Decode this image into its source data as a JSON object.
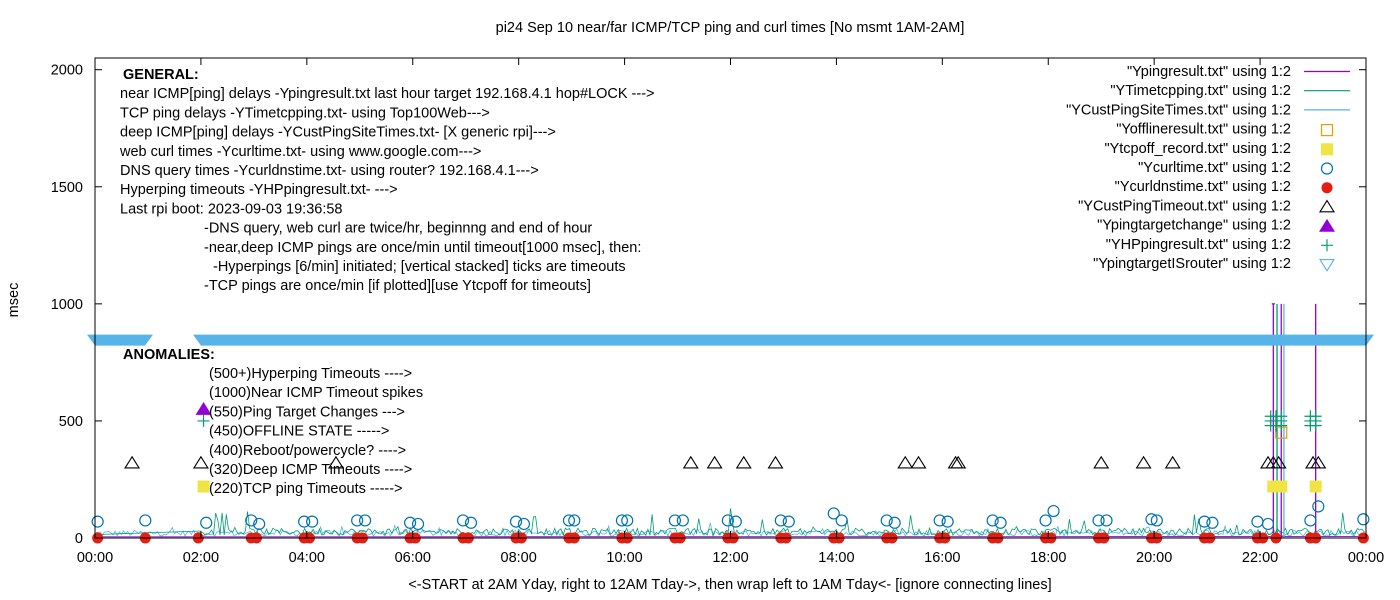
{
  "chart_data": {
    "type": "scatter",
    "title": "pi24 Sep 10  near/far ICMP/TCP ping and curl times [No msmt 1AM-2AM]",
    "xlabel": "<-START at 2AM Yday, right to 12AM Tday->, then wrap left to 1AM Tday<- [ignore connecting lines]",
    "ylabel": "msec",
    "xlim": [
      0,
      24
    ],
    "ylim": [
      0,
      2050
    ],
    "x_ticks": [
      "00:00",
      "02:00",
      "04:00",
      "06:00",
      "08:00",
      "10:00",
      "12:00",
      "14:00",
      "16:00",
      "18:00",
      "20:00",
      "22:00",
      "00:00"
    ],
    "y_ticks": [
      "0",
      "500",
      "1000",
      "1500",
      "2000"
    ],
    "legend_position": "top-right",
    "legend": [
      {
        "label": "\"Ypingresult.txt\" using 1:2",
        "marker": "line",
        "color": "#9400d3"
      },
      {
        "label": "\"YTimetcpping.txt\" using 1:2",
        "marker": "line",
        "color": "#009e73"
      },
      {
        "label": "\"YCustPingSiteTimes.txt\" using 1:2",
        "marker": "line",
        "color": "#56b4e9"
      },
      {
        "label": "\"Yofflineresult.txt\" using 1:2",
        "marker": "open-square",
        "color": "#e69f00"
      },
      {
        "label": "\"Ytcpoff_record.txt\" using 1:2",
        "marker": "filled-square",
        "color": "#f0e442"
      },
      {
        "label": "\"Ycurltime.txt\" using 1:2",
        "marker": "open-circle",
        "color": "#0072b2"
      },
      {
        "label": "\"Ycurldnstime.txt\" using 1:2",
        "marker": "filled-circle",
        "color": "#e51e10"
      },
      {
        "label": "\"YCustPingTimeout.txt\" using 1:2",
        "marker": "open-triangle",
        "color": "#000000"
      },
      {
        "label": "\"Ypingtargetchange\" using 1:2",
        "marker": "filled-triangle",
        "color": "#9400d3"
      },
      {
        "label": "\"YHPpingresult.txt\" using 1:2",
        "marker": "plus",
        "color": "#009e73"
      },
      {
        "label": "\"YpingtargetISrouter\" using 1:2",
        "marker": "open-inv-triangle",
        "color": "#56b4e9"
      }
    ],
    "general_block": [
      {
        "text": "GENERAL:",
        "bold": true,
        "indent": 0
      },
      {
        "text": "near ICMP[ping] delays -Ypingresult.txt last hour target 192.168.4.1 hop#LOCK --->",
        "bold": false,
        "indent": 0
      },
      {
        "text": "TCP ping delays -YTimetcpping.txt- using Top100Web--->",
        "bold": false,
        "indent": 0
      },
      {
        "text": "deep ICMP[ping] delays -YCustPingSiteTimes.txt- [X generic rpi]--->",
        "bold": false,
        "indent": 0
      },
      {
        "text": "web curl times -Ycurltime.txt- using www.google.com--->",
        "bold": false,
        "indent": 0
      },
      {
        "text": "DNS query times -Ycurldnstime.txt- using router? 192.168.4.1--->",
        "bold": false,
        "indent": 0
      },
      {
        "text": "Hyperping timeouts -YHPpingresult.txt- --->",
        "bold": false,
        "indent": 0
      },
      {
        "text": "Last rpi boot: 2023-09-03 19:36:58",
        "bold": false,
        "indent": 0
      },
      {
        "text": "-DNS query, web curl are twice/hr, beginnng and end of hour",
        "bold": false,
        "indent": 1
      },
      {
        "text": "-near,deep ICMP pings are once/min until timeout[1000 msec], then:",
        "bold": false,
        "indent": 1
      },
      {
        "text": "-Hyperpings [6/min] initiated; [vertical stacked] ticks are timeouts",
        "bold": false,
        "indent": 2
      },
      {
        "text": "-TCP pings are once/min [if plotted][use Ytcpoff for timeouts]",
        "bold": false,
        "indent": 1
      }
    ],
    "anomalies_title": "ANOMALIES:",
    "anomalies": [
      {
        "text": "(500+)Hyperping Timeouts ---->"
      },
      {
        "text": "(1000)Near ICMP Timeout spikes"
      },
      {
        "text": "(550)Ping Target Changes --->"
      },
      {
        "text": "(450)OFFLINE STATE ----->"
      },
      {
        "text": "(400)Reboot/powercycle? ---->"
      },
      {
        "text": "(320)Deep ICMP Timeouts ---->"
      },
      {
        "text": "(220)TCP ping Timeouts ----->"
      }
    ],
    "anomaly_samples": {
      "filled_triangle": {
        "x": 2.05,
        "y": 550
      },
      "plus": {
        "x": 2.05,
        "y": 500
      },
      "filled_square": {
        "x": 2.05,
        "y": 220
      }
    },
    "separator_band": {
      "y": 845,
      "color": "#56b4e9"
    },
    "series_points": {
      "curldns_dots": [
        0.05,
        0.95,
        1.95,
        2.95,
        3.05,
        3.95,
        4.05,
        4.95,
        5.05,
        5.95,
        6.05,
        6.95,
        7.05,
        7.95,
        8.05,
        8.95,
        9.05,
        9.95,
        10.05,
        10.95,
        11.05,
        11.95,
        12.05,
        12.95,
        13.05,
        13.95,
        14.05,
        14.95,
        15.05,
        15.95,
        16.05,
        16.95,
        17.05,
        17.95,
        18.05,
        18.95,
        19.05,
        19.95,
        20.05,
        20.95,
        21.05,
        21.95,
        22.05,
        22.3,
        22.95,
        23.05,
        23.95
      ],
      "curl_circles": [
        {
          "x": 0.05,
          "y": 70
        },
        {
          "x": 0.95,
          "y": 75
        },
        {
          "x": 2.1,
          "y": 65
        },
        {
          "x": 2.95,
          "y": 75
        },
        {
          "x": 3.1,
          "y": 60
        },
        {
          "x": 3.95,
          "y": 70
        },
        {
          "x": 4.1,
          "y": 70
        },
        {
          "x": 4.95,
          "y": 75
        },
        {
          "x": 5.1,
          "y": 75
        },
        {
          "x": 5.95,
          "y": 65
        },
        {
          "x": 6.1,
          "y": 60
        },
        {
          "x": 6.95,
          "y": 75
        },
        {
          "x": 7.1,
          "y": 65
        },
        {
          "x": 7.95,
          "y": 70
        },
        {
          "x": 8.1,
          "y": 60
        },
        {
          "x": 8.95,
          "y": 75
        },
        {
          "x": 9.05,
          "y": 75
        },
        {
          "x": 9.95,
          "y": 75
        },
        {
          "x": 10.05,
          "y": 75
        },
        {
          "x": 10.95,
          "y": 75
        },
        {
          "x": 11.1,
          "y": 75
        },
        {
          "x": 11.95,
          "y": 75
        },
        {
          "x": 12.1,
          "y": 70
        },
        {
          "x": 12.95,
          "y": 75
        },
        {
          "x": 13.1,
          "y": 70
        },
        {
          "x": 13.95,
          "y": 105
        },
        {
          "x": 14.1,
          "y": 75
        },
        {
          "x": 14.95,
          "y": 75
        },
        {
          "x": 15.1,
          "y": 65
        },
        {
          "x": 15.95,
          "y": 75
        },
        {
          "x": 16.1,
          "y": 70
        },
        {
          "x": 16.95,
          "y": 75
        },
        {
          "x": 17.1,
          "y": 65
        },
        {
          "x": 17.95,
          "y": 75
        },
        {
          "x": 18.1,
          "y": 115
        },
        {
          "x": 18.95,
          "y": 75
        },
        {
          "x": 19.1,
          "y": 75
        },
        {
          "x": 19.95,
          "y": 80
        },
        {
          "x": 20.05,
          "y": 75
        },
        {
          "x": 20.95,
          "y": 70
        },
        {
          "x": 21.1,
          "y": 65
        },
        {
          "x": 21.95,
          "y": 70
        },
        {
          "x": 22.15,
          "y": 60
        },
        {
          "x": 22.95,
          "y": 75
        },
        {
          "x": 23.1,
          "y": 135
        },
        {
          "x": 23.95,
          "y": 80
        }
      ],
      "custping_timeouts": [
        0.7,
        2.0,
        4.55,
        11.25,
        11.7,
        12.25,
        12.85,
        15.3,
        15.55,
        16.25,
        16.3,
        19.0,
        19.8,
        20.35,
        22.15,
        22.25,
        22.35,
        23.0,
        23.1
      ],
      "custping_timeout_y": 320,
      "ytcpoff_squares": [
        22.25,
        22.4,
        23.05
      ],
      "offline_squares": [
        22.4
      ],
      "hyperping_plus_x": [
        22.2,
        22.3,
        22.4,
        22.95,
        23.05
      ],
      "hyperping_plus_y": [
        480,
        500,
        520
      ],
      "spike_lines": [
        {
          "x": 22.25,
          "color": "#9400d3"
        },
        {
          "x": 22.32,
          "color": "#009e73"
        },
        {
          "x": 22.4,
          "color": "#9400d3"
        },
        {
          "x": 22.45,
          "color": "#56b4e9"
        },
        {
          "x": 23.05,
          "color": "#9400d3"
        }
      ]
    }
  }
}
